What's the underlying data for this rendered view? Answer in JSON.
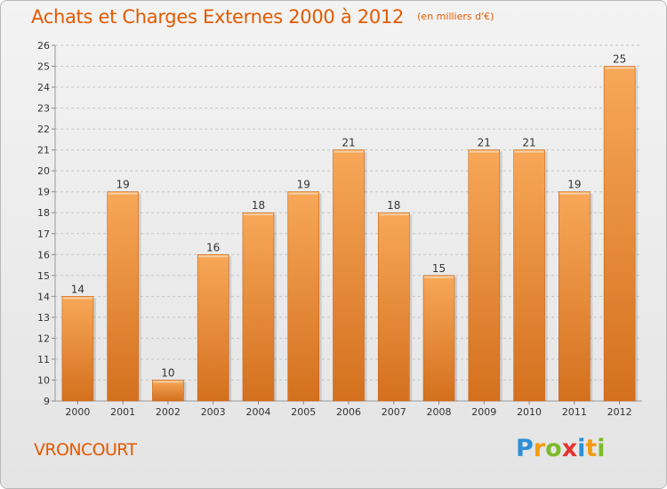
{
  "header": {
    "title": "Achats et Charges Externes 2000 à 2012",
    "subtitle": "(en milliers d'€)"
  },
  "footer": {
    "city": "VRONCOURT",
    "logo": {
      "text": "Proxiti",
      "letters": [
        {
          "ch": "P",
          "color": "#2e8fd6"
        },
        {
          "ch": "r",
          "color": "#f39c12"
        },
        {
          "ch": "o",
          "color": "#7dbb2a"
        },
        {
          "ch": "x",
          "color": "#e3342f"
        },
        {
          "ch": "i",
          "color": "#2e8fd6"
        },
        {
          "ch": "t",
          "color": "#f39c12"
        },
        {
          "ch": "i",
          "color": "#7dbb2a"
        }
      ]
    }
  },
  "colors": {
    "accent": "#e35a00",
    "bar_top": "#f7a858",
    "bar_bottom": "#d4701e",
    "bar_edge": "#c8651c",
    "grid": "#c6c6c6",
    "axis_text": "#333333"
  },
  "chart_data": {
    "type": "bar",
    "categories": [
      "2000",
      "2001",
      "2002",
      "2003",
      "2004",
      "2005",
      "2006",
      "2007",
      "2008",
      "2009",
      "2010",
      "2011",
      "2012"
    ],
    "values": [
      14,
      19,
      10,
      16,
      18,
      19,
      21,
      18,
      15,
      21,
      21,
      19,
      25
    ],
    "data_labels": [
      "14",
      "19",
      "10",
      "16",
      "18",
      "19",
      "21",
      "18",
      "15",
      "21",
      "21",
      "19",
      "25"
    ],
    "ylim": [
      9,
      26
    ],
    "yticks": [
      9,
      10,
      11,
      12,
      13,
      14,
      15,
      16,
      17,
      18,
      19,
      20,
      21,
      22,
      23,
      24,
      25,
      26
    ],
    "grid": "horizontal dashed",
    "legend": "none"
  }
}
